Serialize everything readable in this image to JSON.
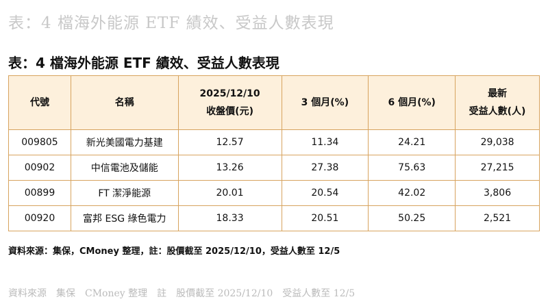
{
  "watermark_top": "表：4 檔海外能源 ETF 績效、受益人數表現",
  "header": {
    "title": "表：4 檔海外能源 ETF 績效、受益人數表現"
  },
  "table": {
    "columns": [
      [
        "代號"
      ],
      [
        "名稱"
      ],
      [
        "2025/12/10",
        "收盤價(元)"
      ],
      [
        "3 個月(%)"
      ],
      [
        "6 個月(%)"
      ],
      [
        "最新",
        "受益人數(人)"
      ]
    ],
    "rows": [
      [
        "009805",
        "新光美國電力基建",
        "12.57",
        "11.34",
        "24.21",
        "29,038"
      ],
      [
        "00902",
        "中信電池及儲能",
        "13.26",
        "27.38",
        "75.63",
        "27,215"
      ],
      [
        "00899",
        "FT 潔淨能源",
        "20.01",
        "20.54",
        "42.02",
        "3,806"
      ],
      [
        "00920",
        "富邦 ESG 綠色電力",
        "18.33",
        "20.51",
        "50.25",
        "2,521"
      ]
    ]
  },
  "footnote": "資料來源：集保，CMoney 整理，註：股價截至 2025/12/10，受益人數至 12/5",
  "watermark_bottom": "資料來源　集保　CMoney 整理　註　股價截至 2025/12/10　受益人數至 12/5"
}
